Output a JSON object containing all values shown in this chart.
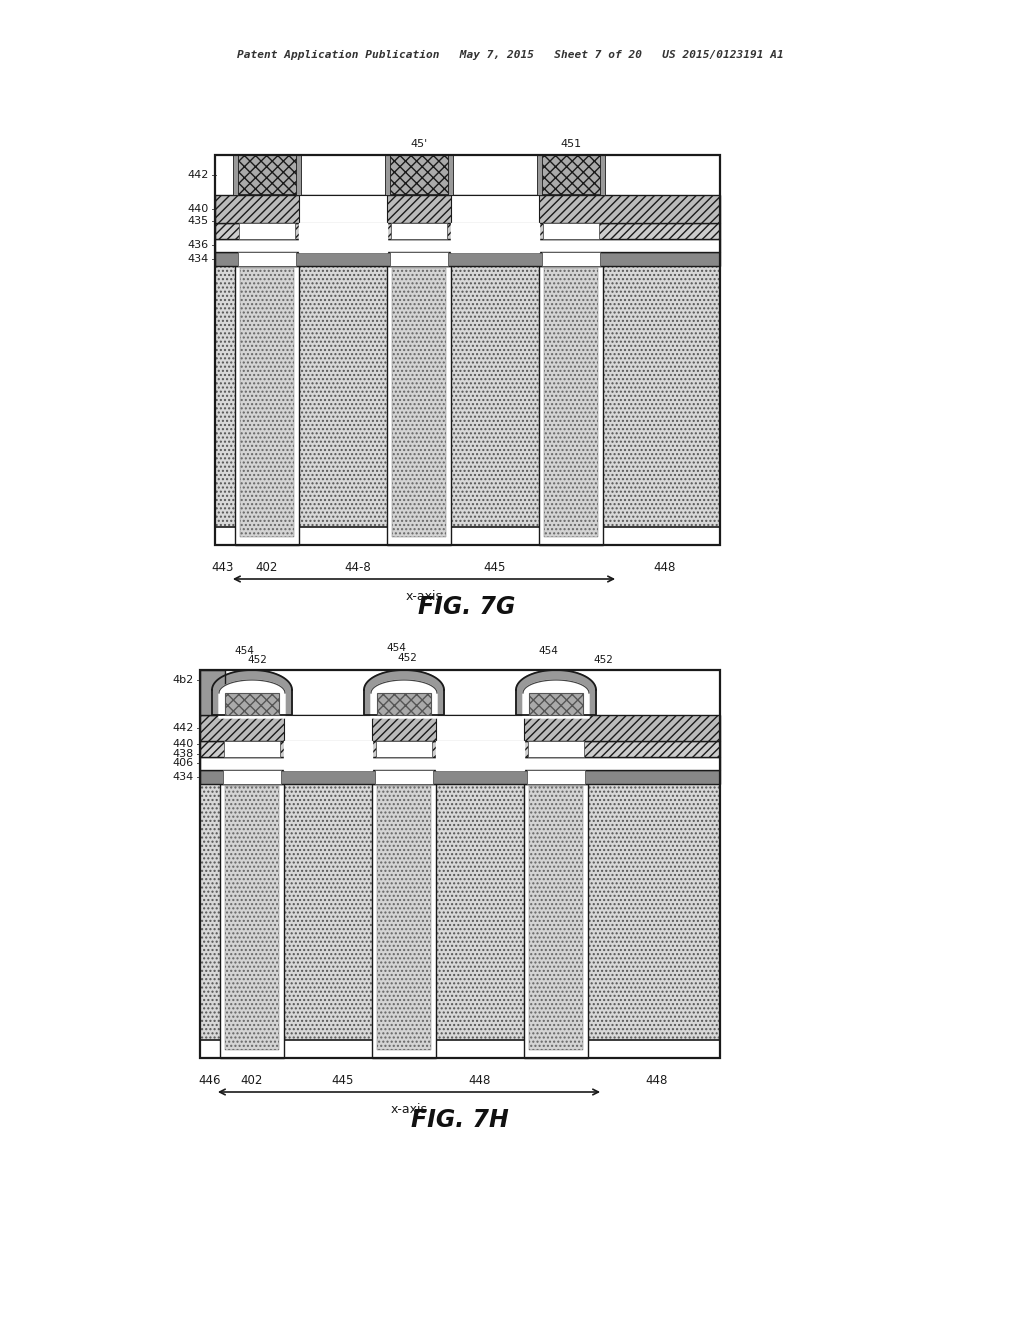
{
  "header": "Patent Application Publication   May 7, 2015   Sheet 7 of 20   US 2015/0123191 A1",
  "fig7g_label": "FIG. 7G",
  "fig7h_label": "FIG. 7H",
  "xaxis_label": "x-axis",
  "fig7g_bot_labels": [
    "443",
    "402",
    "44-8",
    "445",
    "448"
  ],
  "fig7g_side_labels": [
    "442",
    "440",
    "435",
    "436",
    "434"
  ],
  "fig7g_top_labels": [
    "45'",
    "451"
  ],
  "fig7h_bot_labels": [
    "446",
    "402",
    "445",
    "448",
    "448"
  ],
  "fig7h_side_labels": [
    "4b2",
    "442",
    "440",
    "438",
    "406",
    "434"
  ],
  "fig7h_top_labels": [
    "454",
    "452",
    "454",
    "452",
    "454",
    "452",
    "452"
  ],
  "lc": "#1a1a1a",
  "substrate_fc": "#d4d4d4",
  "hatch_fc": "#c0c0c0",
  "cap_fc": "#b0b0b0"
}
